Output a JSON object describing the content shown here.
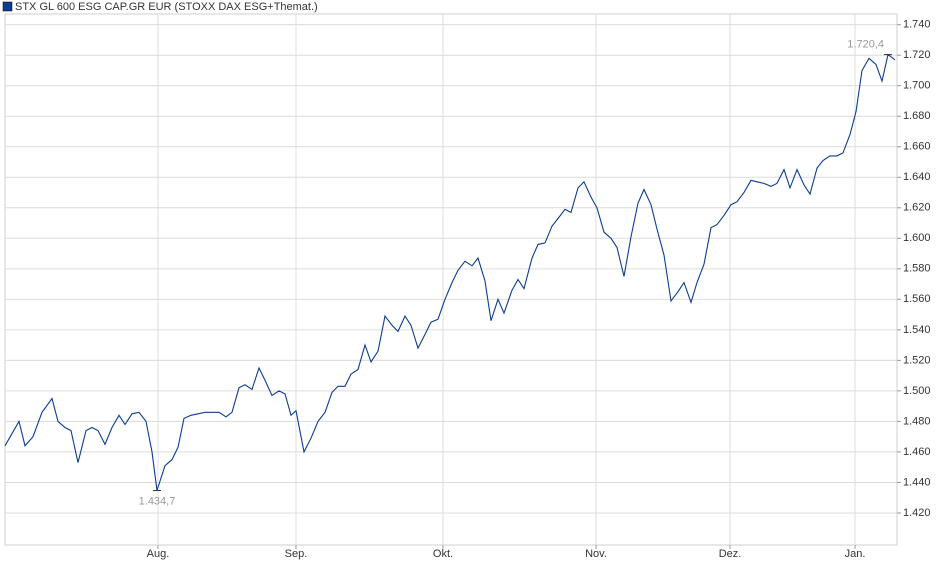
{
  "chart_data": {
    "type": "line",
    "series": [
      {
        "name": "STX GL 600 ESG CAP.GR EUR (STOXX DAX ESG+Themat.)",
        "color": "#0b3d91",
        "values": [
          1464,
          1480,
          1464,
          1470,
          1486,
          1495,
          1480,
          1476,
          1474,
          1453,
          1474,
          1476,
          1474,
          1465,
          1476,
          1484,
          1478,
          1485,
          1486,
          1480,
          1460,
          1434.7,
          1451,
          1455,
          1463,
          1482,
          1484,
          1485,
          1486,
          1486,
          1486,
          1483,
          1486,
          1502,
          1504,
          1501,
          1515,
          1507,
          1497,
          1500,
          1498,
          1484,
          1487,
          1460,
          1469,
          1480,
          1486,
          1499,
          1503,
          1503,
          1511,
          1514,
          1530,
          1519,
          1526,
          1549,
          1543,
          1539,
          1549,
          1543,
          1528,
          1537,
          1545,
          1547,
          1560,
          1571,
          1579,
          1585,
          1582,
          1587,
          1572,
          1546,
          1560,
          1551,
          1566,
          1573,
          1567,
          1587,
          1596,
          1597,
          1608,
          1613,
          1619,
          1617,
          1633,
          1637,
          1627,
          1620,
          1604,
          1600,
          1594,
          1575,
          1601,
          1623,
          1632,
          1622,
          1606,
          1589,
          1559,
          1565,
          1571,
          1558,
          1571,
          1583,
          1607,
          1609,
          1615,
          1622,
          1624,
          1630,
          1638,
          1637,
          1636,
          1634,
          1636,
          1645,
          1633,
          1645,
          1635,
          1629,
          1646,
          1651,
          1654,
          1654,
          1656,
          1668,
          1683,
          1710,
          1718,
          1714,
          1703,
          1720.4,
          1717
        ]
      }
    ],
    "x": [
      0,
      14,
      20,
      28,
      37,
      47,
      53,
      60,
      66,
      73,
      81,
      87,
      93,
      100,
      107,
      114,
      120,
      127,
      134,
      141,
      147,
      152,
      160,
      167,
      173,
      179,
      186,
      193,
      200,
      207,
      214,
      221,
      227,
      234,
      240,
      247,
      254,
      260,
      267,
      274,
      280,
      286,
      291,
      299,
      306,
      313,
      320,
      327,
      333,
      340,
      346,
      353,
      360,
      366,
      373,
      380,
      387,
      393,
      400,
      406,
      413,
      420,
      426,
      433,
      440,
      447,
      453,
      460,
      467,
      473,
      480,
      486,
      493,
      499,
      507,
      513,
      519,
      527,
      533,
      540,
      547,
      553,
      560,
      566,
      573,
      579,
      586,
      592,
      599,
      606,
      612,
      619,
      626,
      633,
      639,
      646,
      652,
      659,
      666,
      673,
      679,
      686,
      692,
      699,
      706,
      712,
      719,
      726,
      732,
      739,
      746,
      752,
      759,
      766,
      772,
      779,
      785,
      792,
      799,
      805,
      812,
      818,
      825,
      832,
      838,
      845,
      851,
      857,
      864,
      871,
      877,
      883,
      890
    ],
    "xlim": [
      0,
      892
    ],
    "xticks": [
      {
        "value": 153,
        "label": "Aug."
      },
      {
        "value": 291,
        "label": "Sep."
      },
      {
        "value": 438,
        "label": "Okt."
      },
      {
        "value": 591,
        "label": "Nov."
      },
      {
        "value": 725,
        "label": "Dez."
      },
      {
        "value": 850,
        "label": "Jan."
      }
    ],
    "ylim": [
      1399,
      1747
    ],
    "yticks": [
      {
        "value": 1420,
        "label": "1.420"
      },
      {
        "value": 1440,
        "label": "1.440"
      },
      {
        "value": 1460,
        "label": "1.460"
      },
      {
        "value": 1480,
        "label": "1.480"
      },
      {
        "value": 1500,
        "label": "1.500"
      },
      {
        "value": 1520,
        "label": "1.520"
      },
      {
        "value": 1540,
        "label": "1.540"
      },
      {
        "value": 1560,
        "label": "1.560"
      },
      {
        "value": 1580,
        "label": "1.580"
      },
      {
        "value": 1600,
        "label": "1.600"
      },
      {
        "value": 1620,
        "label": "1.620"
      },
      {
        "value": 1640,
        "label": "1.640"
      },
      {
        "value": 1660,
        "label": "1.660"
      },
      {
        "value": 1680,
        "label": "1.680"
      },
      {
        "value": 1700,
        "label": "1.700"
      },
      {
        "value": 1720,
        "label": "1.720"
      },
      {
        "value": 1740,
        "label": "1.740"
      }
    ],
    "annotations": [
      {
        "x": 152,
        "value": 1434.7,
        "label": "1.434,7",
        "position": "below"
      },
      {
        "x": 883,
        "value": 1720.4,
        "label": "1.720,4",
        "position": "above"
      }
    ],
    "grid": true
  }
}
